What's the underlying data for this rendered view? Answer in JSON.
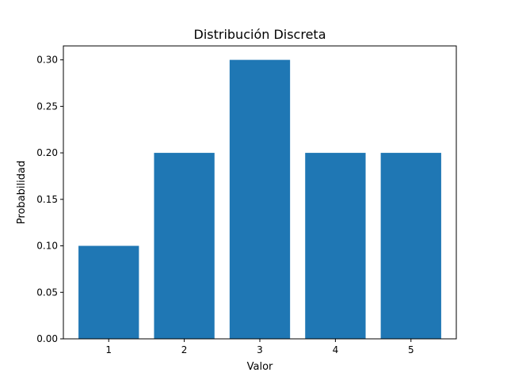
{
  "chart_data": {
    "type": "bar",
    "title": "Distribución Discreta",
    "xlabel": "Valor",
    "ylabel": "Probabilidad",
    "categories": [
      "1",
      "2",
      "3",
      "4",
      "5"
    ],
    "x": [
      1,
      2,
      3,
      4,
      5
    ],
    "values": [
      0.1,
      0.2,
      0.3,
      0.2,
      0.2
    ],
    "xlim": [
      0.4,
      5.6
    ],
    "ylim": [
      0.0,
      0.315
    ],
    "yticks": [
      0.0,
      0.05,
      0.1,
      0.15,
      0.2,
      0.25,
      0.3
    ],
    "ytick_labels": [
      "0.00",
      "0.05",
      "0.10",
      "0.15",
      "0.20",
      "0.25",
      "0.30"
    ],
    "bar_color": "#1f77b4",
    "grid": false,
    "legend": "none"
  }
}
